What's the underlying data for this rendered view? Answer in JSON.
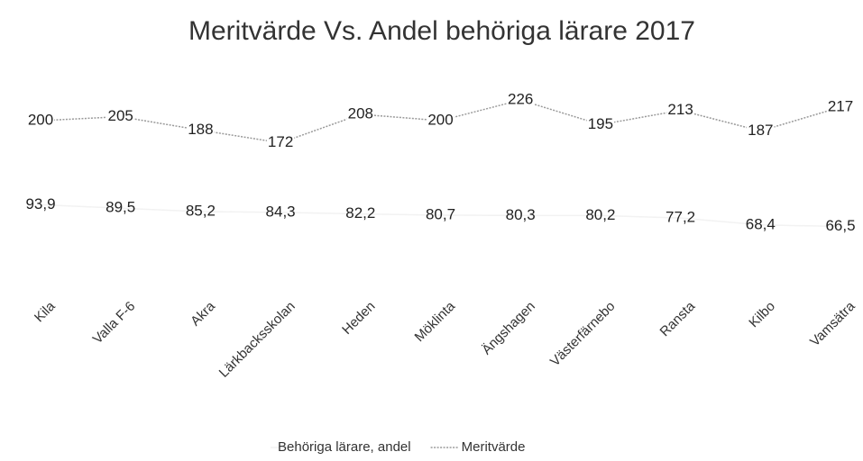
{
  "chart_data": {
    "type": "line",
    "title": "Meritvärde Vs. Andel behöriga lärare 2017",
    "categories": [
      "Kila",
      "Valla F-6",
      "Akra",
      "Lärkbacksskolan",
      "Heden",
      "Möklinta",
      "Ängshagen",
      "Västerfärnebo",
      "Ransta",
      "Kilbo",
      "Vamsätra"
    ],
    "series": [
      {
        "name": "Behöriga lärare, andel",
        "color": "#f2f2f2",
        "values": [
          93.9,
          89.5,
          85.2,
          84.3,
          82.2,
          80.7,
          80.3,
          80.2,
          77.2,
          68.4,
          66.5
        ],
        "value_labels": [
          "93,9",
          "89,5",
          "85,2",
          "84,3",
          "82,2",
          "80,7",
          "80,3",
          "80,2",
          "77,2",
          "68,4",
          "66,5"
        ]
      },
      {
        "name": "Meritvärde",
        "color": "#9a9a9a",
        "values": [
          200,
          205,
          188,
          172,
          208,
          200,
          226,
          195,
          213,
          187,
          217
        ]
      }
    ],
    "ylim": [
      0,
      250
    ],
    "legend": "bottom"
  }
}
